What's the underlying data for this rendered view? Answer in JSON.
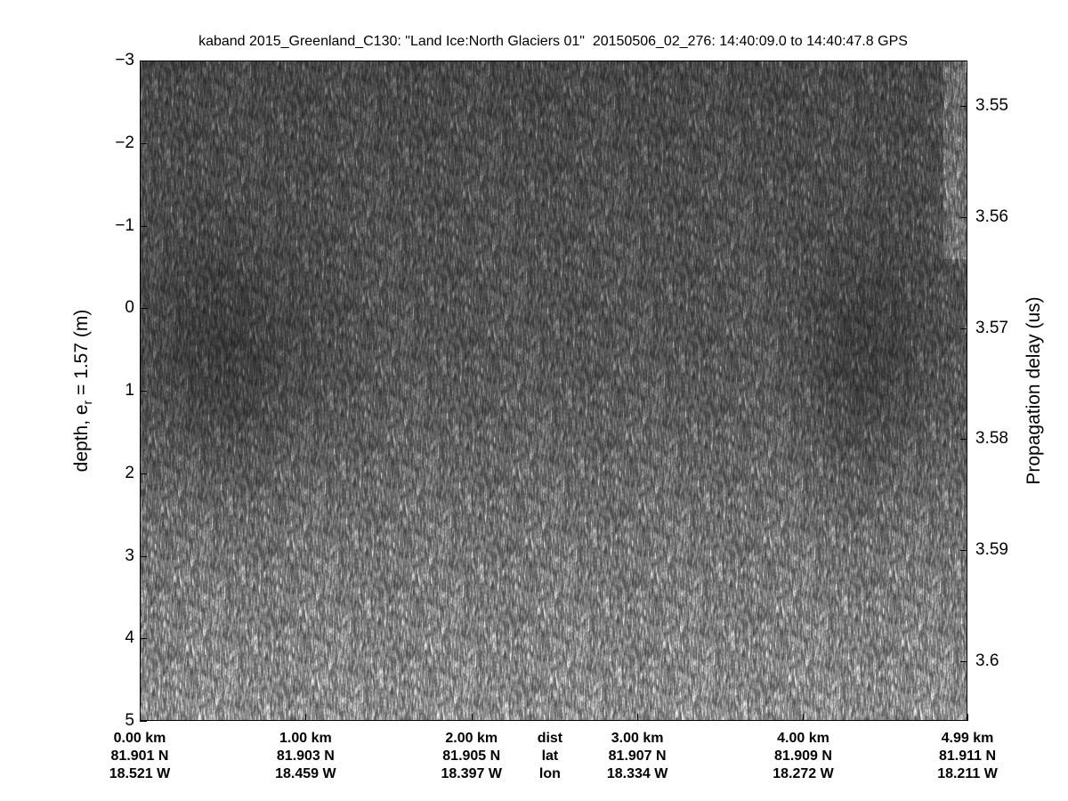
{
  "chart_data": {
    "type": "heatmap",
    "title": "kaband 2015_Greenland_C130: \"Land Ice:North Glaciers 01\"  20150506_02_276: 14:40:09.0 to 14:40:47.8 GPS",
    "ylabel": {
      "prefix": "depth, e",
      "sub": "r",
      "suffix": " = 1.57 (m)"
    },
    "ylabel_right": "Propagation delay (us)",
    "ylim": [
      -3,
      5
    ],
    "y_reversed": true,
    "yticks": [
      -3,
      -2,
      -1,
      0,
      1,
      2,
      3,
      4,
      5
    ],
    "ylim_right": [
      3.5459,
      3.6054
    ],
    "yticks_right": [
      "3.55",
      "3.56",
      "3.57",
      "3.58",
      "3.59",
      "3.6"
    ],
    "xlim_km": [
      0,
      4.99
    ],
    "x_axis_rows": {
      "dist": {
        "label": "dist",
        "values_km": [
          0,
          1,
          2,
          3,
          4,
          4.99
        ],
        "labels": [
          "0.00 km",
          "1.00 km",
          "2.00 km",
          "3.00 km",
          "4.00 km",
          "4.99 km"
        ]
      },
      "lat": {
        "label": "lat",
        "labels": [
          "81.901 N",
          "81.903 N",
          "81.905 N",
          "81.907 N",
          "81.909 N",
          "81.911 N"
        ]
      },
      "lon": {
        "label": "lon",
        "labels": [
          "18.521 W",
          "18.459 W",
          "18.397 W",
          "18.334 W",
          "18.272 W",
          "18.211 W"
        ]
      }
    },
    "colormap": "gray",
    "grid": false
  }
}
